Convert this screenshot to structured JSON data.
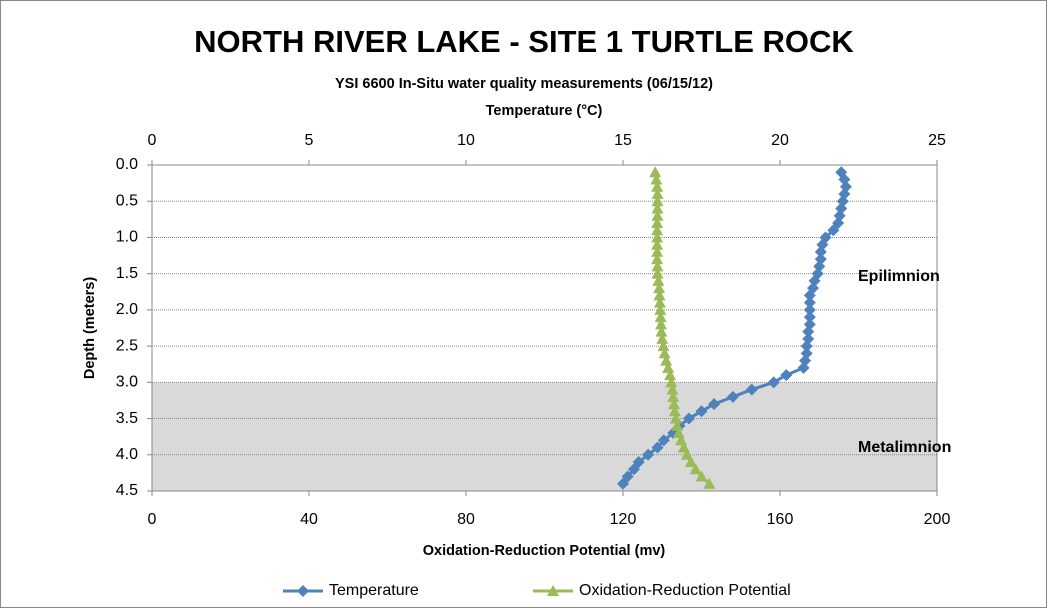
{
  "chart_data": {
    "type": "line",
    "title": "NORTH RIVER LAKE - SITE 1 TURTLE ROCK",
    "subtitle": "YSI 6600 In-Situ water quality measurements (06/15/12)",
    "x2_label": "Temperature (°C)",
    "x_label": "Oxidation-Reduction Potential (mv)",
    "y_label": "Depth (meters)",
    "y": [
      0.1,
      0.2,
      0.3,
      0.4,
      0.5,
      0.6,
      0.7,
      0.8,
      0.9,
      1.0,
      1.1,
      1.2,
      1.3,
      1.4,
      1.5,
      1.6,
      1.7,
      1.8,
      1.9,
      2.0,
      2.1,
      2.2,
      2.3,
      2.4,
      2.5,
      2.6,
      2.7,
      2.8,
      2.9,
      3.0,
      3.1,
      3.2,
      3.3,
      3.4,
      3.5,
      3.6,
      3.7,
      3.8,
      3.9,
      4.0,
      4.1,
      4.2,
      4.3,
      4.4
    ],
    "series": [
      {
        "name": "Temperature",
        "color": "#4f81bd",
        "axis": "x2",
        "marker": "diamond",
        "values": [
          21.95,
          22.05,
          22.1,
          22.05,
          22.0,
          21.95,
          21.9,
          21.85,
          21.7,
          21.45,
          21.35,
          21.3,
          21.3,
          21.25,
          21.2,
          21.1,
          21.05,
          20.95,
          20.95,
          20.95,
          20.95,
          20.95,
          20.9,
          20.9,
          20.85,
          20.85,
          20.8,
          20.75,
          20.2,
          19.8,
          19.1,
          18.5,
          17.9,
          17.5,
          17.1,
          16.8,
          16.6,
          16.3,
          16.1,
          15.8,
          15.5,
          15.35,
          15.15,
          15.0
        ]
      },
      {
        "name": "Oxidation-Reduction Potential",
        "color": "#9bbb59",
        "axis": "x",
        "marker": "triangle",
        "values": [
          128.2,
          128.5,
          128.7,
          128.8,
          128.8,
          128.8,
          128.8,
          128.7,
          128.7,
          128.7,
          128.7,
          128.7,
          128.7,
          128.8,
          128.8,
          129.0,
          129.2,
          129.3,
          129.4,
          129.5,
          129.6,
          129.7,
          129.8,
          130.0,
          130.3,
          130.6,
          131.0,
          131.5,
          132.0,
          132.3,
          132.6,
          132.8,
          133.0,
          133.2,
          133.5,
          133.8,
          134.2,
          134.8,
          135.5,
          136.3,
          137.3,
          138.5,
          140.0,
          142.0
        ]
      }
    ],
    "xlim": [
      0,
      200
    ],
    "xticks": [
      0,
      40,
      80,
      120,
      160,
      200
    ],
    "x2lim": [
      0,
      25
    ],
    "x2ticks": [
      0,
      5,
      10,
      15,
      20,
      25
    ],
    "ylim": [
      0,
      4.5
    ],
    "y_inverted": true,
    "yticks": [
      {
        "value": 0,
        "label": "0.0"
      },
      0.5,
      {
        "value": 1,
        "label": "1.0"
      },
      1.5,
      {
        "value": 2,
        "label": "2.0"
      },
      2.5,
      {
        "value": 3,
        "label": "3.0"
      },
      3.5,
      {
        "value": 4,
        "label": "4.0"
      },
      4.5
    ],
    "grid": true,
    "bands": [
      {
        "from": 3,
        "to": 4.5,
        "color": "#d9d9d9"
      }
    ],
    "annotations": [
      "Epilimnion",
      "Metalimnion"
    ],
    "legend": "bottom"
  }
}
